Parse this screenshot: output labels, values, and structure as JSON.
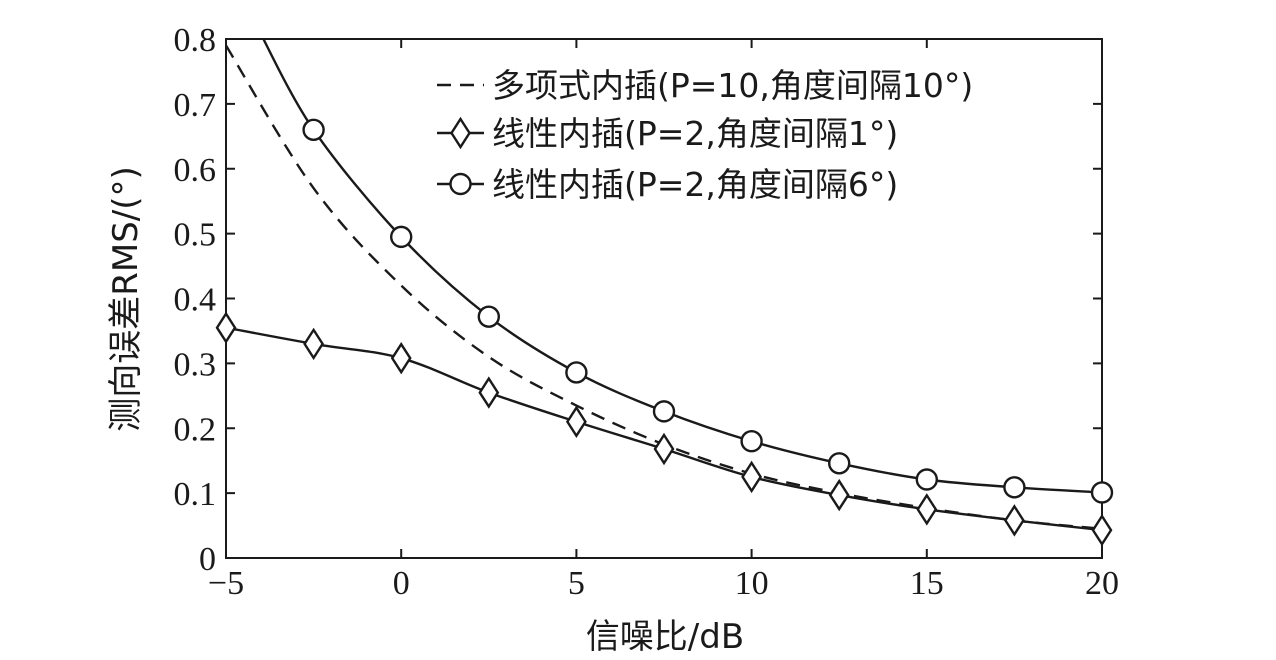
{
  "chart_data": {
    "type": "line",
    "xlabel": "信噪比/dB",
    "ylabel": "测向误差RMS/(°)",
    "xlim": [
      -5,
      20
    ],
    "ylim": [
      0,
      0.8
    ],
    "xticks": [
      -5,
      0,
      5,
      10,
      15,
      20
    ],
    "yticks": [
      0,
      0.1,
      0.2,
      0.3,
      0.4,
      0.5,
      0.6,
      0.7,
      0.8
    ],
    "xtick_labels": [
      "−5",
      "0",
      "5",
      "10",
      "15",
      "20"
    ],
    "ytick_labels": [
      "0",
      "0.1",
      "0.2",
      "0.3",
      "0.4",
      "0.5",
      "0.6",
      "0.7",
      "0.8"
    ],
    "grid": false,
    "legend_position": "top-right",
    "series": [
      {
        "name": "多项式内插(P=10,角度间隔10°)",
        "style": "dashed",
        "marker": "none",
        "x": [
          -5,
          -2.5,
          0,
          2.5,
          5,
          7.5,
          10,
          12.5,
          15,
          17.5,
          20
        ],
        "values": [
          0.79,
          0.57,
          0.42,
          0.31,
          0.235,
          0.175,
          0.13,
          0.1,
          0.077,
          0.058,
          0.045
        ]
      },
      {
        "name": "线性内插(P=2,角度间隔1°)",
        "style": "solid",
        "marker": "diamond",
        "x": [
          -5,
          -2.5,
          0,
          2.5,
          5,
          7.5,
          10,
          12.5,
          15,
          17.5,
          20
        ],
        "values": [
          0.355,
          0.33,
          0.308,
          0.255,
          0.21,
          0.168,
          0.125,
          0.097,
          0.075,
          0.058,
          0.043
        ]
      },
      {
        "name": "线性内插(P=2,角度间隔6°)",
        "style": "solid",
        "marker": "circle",
        "x": [
          -2.5,
          0,
          2.5,
          5,
          7.5,
          10,
          12.5,
          15,
          17.5,
          20
        ],
        "values": [
          0.66,
          0.495,
          0.372,
          0.286,
          0.226,
          0.18,
          0.146,
          0.121,
          0.109,
          0.101
        ],
        "start_above_axis": true
      }
    ]
  }
}
